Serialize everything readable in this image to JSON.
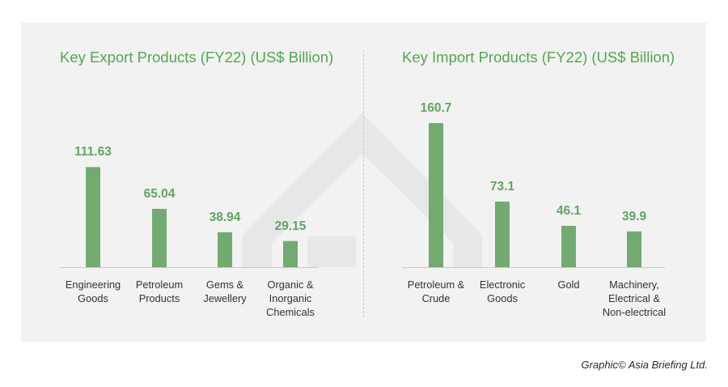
{
  "colors": {
    "bar": "#72aa72",
    "title": "#53a653",
    "value": "#63a363",
    "panel": "#f2f2f2",
    "axis": "#c9c9c9"
  },
  "chart_data": [
    {
      "type": "bar",
      "title": "Key Export Products (FY22) (US$ Billion)",
      "categories": [
        "Engineering\nGoods",
        "Petroleum\nProducts",
        "Gems &\nJewellery",
        "Organic &\nInorganic\nChemicals"
      ],
      "values": [
        111.63,
        65.04,
        38.94,
        29.15
      ],
      "value_labels": [
        "111.63",
        "65.04",
        "38.94",
        "29.15"
      ],
      "xlabel": "",
      "ylabel": "",
      "ylim": [
        0,
        160.7
      ],
      "grid": false,
      "legend": "none"
    },
    {
      "type": "bar",
      "title": "Key Import Products (FY22) (US$ Billion)",
      "categories": [
        "Petroleum &\nCrude",
        "Electronic\nGoods",
        "Gold",
        "Machinery,\nElectrical &\nNon-electrical"
      ],
      "values": [
        160.7,
        73.1,
        46.1,
        39.9
      ],
      "value_labels": [
        "160.7",
        "73.1",
        "46.1",
        "39.9"
      ],
      "xlabel": "",
      "ylabel": "",
      "ylim": [
        0,
        160.7
      ],
      "grid": false,
      "legend": "none"
    }
  ],
  "footer": {
    "credit": "Graphic© Asia Briefing Ltd."
  }
}
